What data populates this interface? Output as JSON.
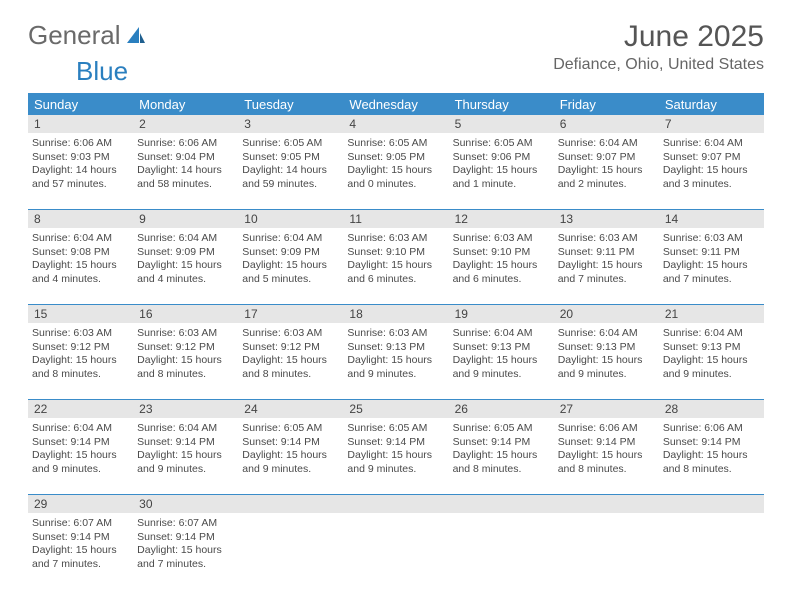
{
  "logo": {
    "part1": "General",
    "part2": "Blue"
  },
  "title": "June 2025",
  "location": "Defiance, Ohio, United States",
  "colors": {
    "header_bg": "#3a8cc9",
    "header_text": "#ffffff",
    "daynum_bg": "#e6e6e6",
    "text": "#4a4a4a",
    "logo_gray": "#6a6a6a",
    "logo_blue": "#2a7fbf"
  },
  "weekdays": [
    "Sunday",
    "Monday",
    "Tuesday",
    "Wednesday",
    "Thursday",
    "Friday",
    "Saturday"
  ],
  "weeks": [
    [
      {
        "n": "1",
        "sr": "6:06 AM",
        "ss": "9:03 PM",
        "dl": "14 hours and 57 minutes."
      },
      {
        "n": "2",
        "sr": "6:06 AM",
        "ss": "9:04 PM",
        "dl": "14 hours and 58 minutes."
      },
      {
        "n": "3",
        "sr": "6:05 AM",
        "ss": "9:05 PM",
        "dl": "14 hours and 59 minutes."
      },
      {
        "n": "4",
        "sr": "6:05 AM",
        "ss": "9:05 PM",
        "dl": "15 hours and 0 minutes."
      },
      {
        "n": "5",
        "sr": "6:05 AM",
        "ss": "9:06 PM",
        "dl": "15 hours and 1 minute."
      },
      {
        "n": "6",
        "sr": "6:04 AM",
        "ss": "9:07 PM",
        "dl": "15 hours and 2 minutes."
      },
      {
        "n": "7",
        "sr": "6:04 AM",
        "ss": "9:07 PM",
        "dl": "15 hours and 3 minutes."
      }
    ],
    [
      {
        "n": "8",
        "sr": "6:04 AM",
        "ss": "9:08 PM",
        "dl": "15 hours and 4 minutes."
      },
      {
        "n": "9",
        "sr": "6:04 AM",
        "ss": "9:09 PM",
        "dl": "15 hours and 4 minutes."
      },
      {
        "n": "10",
        "sr": "6:04 AM",
        "ss": "9:09 PM",
        "dl": "15 hours and 5 minutes."
      },
      {
        "n": "11",
        "sr": "6:03 AM",
        "ss": "9:10 PM",
        "dl": "15 hours and 6 minutes."
      },
      {
        "n": "12",
        "sr": "6:03 AM",
        "ss": "9:10 PM",
        "dl": "15 hours and 6 minutes."
      },
      {
        "n": "13",
        "sr": "6:03 AM",
        "ss": "9:11 PM",
        "dl": "15 hours and 7 minutes."
      },
      {
        "n": "14",
        "sr": "6:03 AM",
        "ss": "9:11 PM",
        "dl": "15 hours and 7 minutes."
      }
    ],
    [
      {
        "n": "15",
        "sr": "6:03 AM",
        "ss": "9:12 PM",
        "dl": "15 hours and 8 minutes."
      },
      {
        "n": "16",
        "sr": "6:03 AM",
        "ss": "9:12 PM",
        "dl": "15 hours and 8 minutes."
      },
      {
        "n": "17",
        "sr": "6:03 AM",
        "ss": "9:12 PM",
        "dl": "15 hours and 8 minutes."
      },
      {
        "n": "18",
        "sr": "6:03 AM",
        "ss": "9:13 PM",
        "dl": "15 hours and 9 minutes."
      },
      {
        "n": "19",
        "sr": "6:04 AM",
        "ss": "9:13 PM",
        "dl": "15 hours and 9 minutes."
      },
      {
        "n": "20",
        "sr": "6:04 AM",
        "ss": "9:13 PM",
        "dl": "15 hours and 9 minutes."
      },
      {
        "n": "21",
        "sr": "6:04 AM",
        "ss": "9:13 PM",
        "dl": "15 hours and 9 minutes."
      }
    ],
    [
      {
        "n": "22",
        "sr": "6:04 AM",
        "ss": "9:14 PM",
        "dl": "15 hours and 9 minutes."
      },
      {
        "n": "23",
        "sr": "6:04 AM",
        "ss": "9:14 PM",
        "dl": "15 hours and 9 minutes."
      },
      {
        "n": "24",
        "sr": "6:05 AM",
        "ss": "9:14 PM",
        "dl": "15 hours and 9 minutes."
      },
      {
        "n": "25",
        "sr": "6:05 AM",
        "ss": "9:14 PM",
        "dl": "15 hours and 9 minutes."
      },
      {
        "n": "26",
        "sr": "6:05 AM",
        "ss": "9:14 PM",
        "dl": "15 hours and 8 minutes."
      },
      {
        "n": "27",
        "sr": "6:06 AM",
        "ss": "9:14 PM",
        "dl": "15 hours and 8 minutes."
      },
      {
        "n": "28",
        "sr": "6:06 AM",
        "ss": "9:14 PM",
        "dl": "15 hours and 8 minutes."
      }
    ],
    [
      {
        "n": "29",
        "sr": "6:07 AM",
        "ss": "9:14 PM",
        "dl": "15 hours and 7 minutes."
      },
      {
        "n": "30",
        "sr": "6:07 AM",
        "ss": "9:14 PM",
        "dl": "15 hours and 7 minutes."
      },
      null,
      null,
      null,
      null,
      null
    ]
  ],
  "labels": {
    "sunrise": "Sunrise: ",
    "sunset": "Sunset: ",
    "daylight": "Daylight: "
  }
}
